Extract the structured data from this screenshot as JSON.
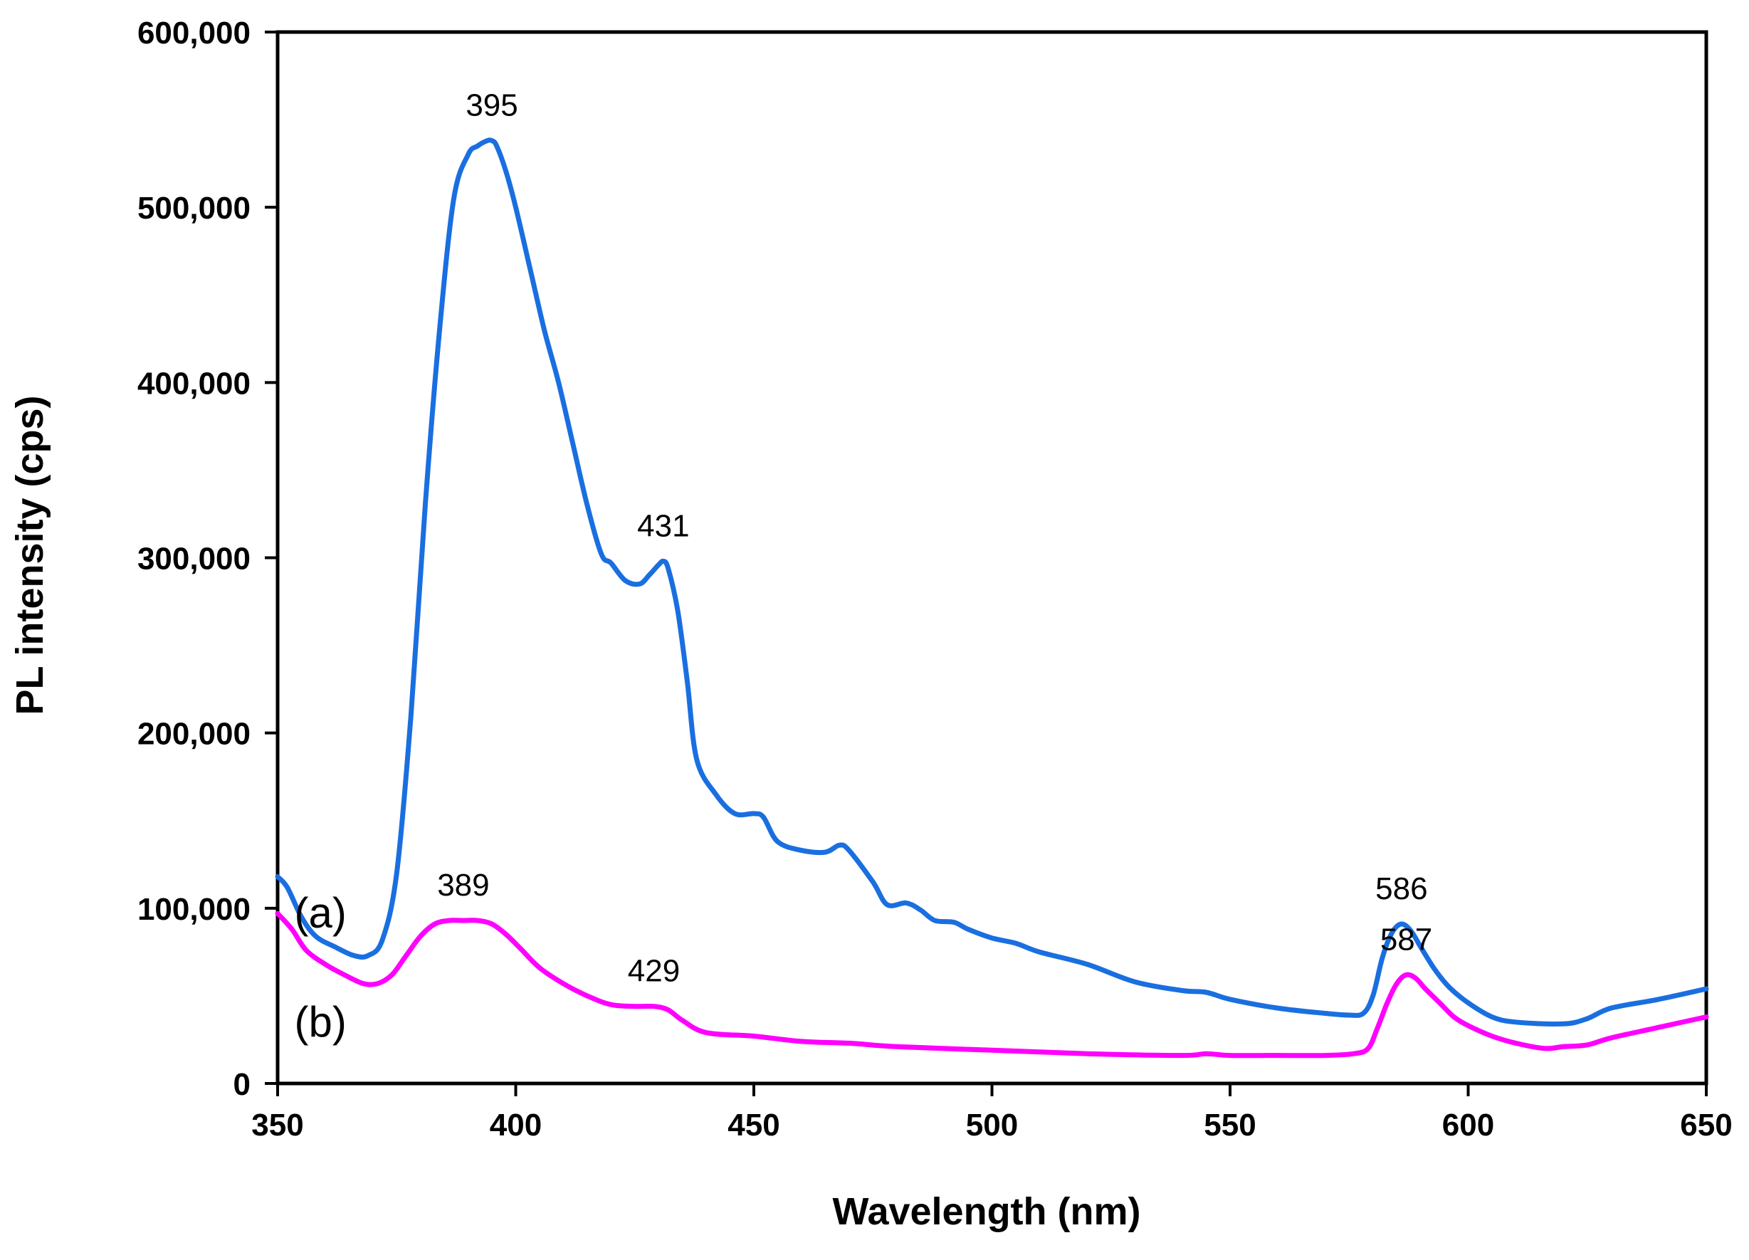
{
  "chart_data": {
    "type": "line",
    "title": "",
    "xlabel": "Wavelength (nm)",
    "ylabel": "PL intensity (cps)",
    "xlim": [
      350,
      650
    ],
    "ylim": [
      0,
      600000
    ],
    "xticks": [
      350,
      400,
      450,
      500,
      550,
      600,
      650
    ],
    "xtick_labels": [
      "350",
      "400",
      "450",
      "500",
      "550",
      "600",
      "650"
    ],
    "yticks": [
      0,
      100000,
      200000,
      300000,
      400000,
      500000,
      600000
    ],
    "ytick_labels": [
      "0",
      "100,000",
      "200,000",
      "300,000",
      "400,000",
      "500,000",
      "600,000"
    ],
    "grid": false,
    "series": [
      {
        "name": "(a)",
        "color": "#1a6fe0",
        "x": [
          350,
          352,
          355,
          358,
          362,
          366,
          369,
          372,
          375,
          378,
          381,
          384,
          387,
          390,
          392,
          394,
          395,
          396,
          398,
          400,
          403,
          406,
          409,
          412,
          415,
          418,
          420,
          423,
          426,
          428,
          430,
          431,
          432,
          434,
          436,
          438,
          442,
          446,
          450,
          452,
          455,
          460,
          465,
          468,
          470,
          475,
          478,
          482,
          485,
          488,
          492,
          495,
          500,
          505,
          510,
          520,
          530,
          540,
          545,
          550,
          560,
          570,
          575,
          578,
          580,
          582,
          584,
          586,
          588,
          590,
          593,
          596,
          600,
          605,
          610,
          620,
          625,
          630,
          640,
          650
        ],
        "y": [
          118000,
          112000,
          95000,
          84000,
          78000,
          73000,
          73000,
          82000,
          120000,
          210000,
          330000,
          430000,
          505000,
          530000,
          535000,
          538000,
          538000,
          535000,
          520000,
          500000,
          465000,
          430000,
          400000,
          365000,
          330000,
          302000,
          297000,
          287000,
          285000,
          290000,
          296000,
          298000,
          294000,
          270000,
          230000,
          185000,
          165000,
          154000,
          154000,
          152000,
          138000,
          133000,
          132000,
          136000,
          133000,
          115000,
          102000,
          103000,
          99000,
          93000,
          92000,
          88000,
          83000,
          80000,
          75000,
          68000,
          58000,
          53000,
          52000,
          48000,
          43000,
          40000,
          39000,
          40000,
          50000,
          72000,
          86000,
          91000,
          87000,
          78000,
          65000,
          55000,
          46000,
          38000,
          35000,
          34000,
          37000,
          43000,
          48000,
          54000
        ]
      },
      {
        "name": "(b)",
        "color": "#ff00ff",
        "x": [
          350,
          353,
          356,
          360,
          364,
          368,
          371,
          374,
          377,
          380,
          383,
          386,
          389,
          392,
          395,
          398,
          401,
          405,
          410,
          415,
          420,
          425,
          429,
          432,
          435,
          440,
          450,
          460,
          470,
          480,
          500,
          520,
          540,
          545,
          550,
          560,
          570,
          576,
          579,
          581,
          583,
          585,
          587,
          589,
          591,
          594,
          597,
          600,
          605,
          610,
          616,
          620,
          625,
          630,
          640,
          650
        ],
        "y": [
          97000,
          88000,
          76000,
          68000,
          62000,
          57000,
          57000,
          62000,
          73000,
          84000,
          91000,
          93000,
          93000,
          93000,
          91000,
          85000,
          77000,
          66000,
          57000,
          50000,
          45000,
          44000,
          44000,
          42000,
          36000,
          29000,
          27000,
          24000,
          23000,
          21000,
          19000,
          17000,
          16000,
          17000,
          16000,
          16000,
          16000,
          17000,
          20000,
          32000,
          46000,
          57000,
          62000,
          60000,
          54000,
          46000,
          38000,
          33000,
          27000,
          23000,
          20000,
          21000,
          22000,
          26000,
          32000,
          38000
        ]
      }
    ],
    "annotations": [
      {
        "text": "395",
        "x": 395,
        "y": 538000,
        "anchor": "above"
      },
      {
        "text": "431",
        "x": 431,
        "y": 298000,
        "anchor": "above"
      },
      {
        "text": "389",
        "x": 389,
        "y": 93000,
        "anchor": "above"
      },
      {
        "text": "429",
        "x": 429,
        "y": 44000,
        "anchor": "above"
      },
      {
        "text": "586",
        "x": 586,
        "y": 91000,
        "anchor": "above"
      },
      {
        "text": "587",
        "x": 587,
        "y": 62000,
        "anchor": "above"
      }
    ],
    "series_labels": [
      {
        "text": "(a)",
        "series": "(a)"
      },
      {
        "text": "(b)",
        "series": "(b)"
      }
    ]
  }
}
